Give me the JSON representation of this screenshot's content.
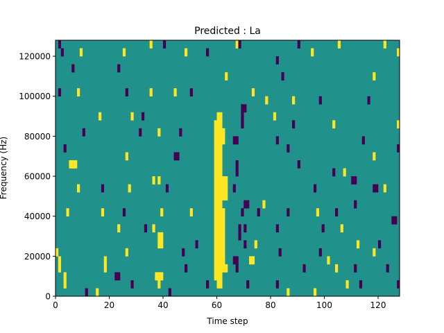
{
  "chart_data": {
    "type": "heatmap",
    "title": "Predicted : La",
    "xlabel": "Time step",
    "ylabel": "Frequency (Hz)",
    "xlim": [
      0,
      128
    ],
    "ylim": [
      0,
      128000
    ],
    "xticks": [
      0,
      20,
      40,
      60,
      80,
      100,
      120
    ],
    "yticks": [
      0,
      20000,
      40000,
      60000,
      80000,
      100000,
      120000
    ],
    "n_time_steps": 128,
    "n_freq_bins": 32,
    "bin_hz": 4000,
    "background_value": 1,
    "colors": {
      "0": "#440154",
      "1": "#21918c",
      "2": "#fde725"
    },
    "cells_note": "each cell: [time_start, time_width, freq_bin_start, bin_count, value]",
    "cells": [
      [
        59,
        3,
        2,
        20,
        2
      ],
      [
        62,
        1,
        4,
        7,
        2
      ],
      [
        60,
        2,
        22,
        1,
        2
      ],
      [
        62,
        1,
        19,
        2,
        2
      ],
      [
        62,
        2,
        3,
        1,
        2
      ],
      [
        60,
        2,
        1,
        1,
        2
      ],
      [
        61,
        3,
        12,
        3,
        2
      ],
      [
        67,
        1,
        3,
        1,
        0
      ],
      [
        66,
        1,
        13,
        1,
        0
      ],
      [
        66,
        2,
        19,
        1,
        0
      ],
      [
        69,
        1,
        21,
        2,
        0
      ],
      [
        68,
        1,
        7,
        2,
        0
      ],
      [
        70,
        1,
        6,
        1,
        0
      ],
      [
        67,
        1,
        15,
        2,
        0
      ],
      [
        71,
        1,
        1,
        1,
        0
      ],
      [
        66,
        2,
        4,
        1,
        0
      ],
      [
        69,
        1,
        10,
        1,
        0
      ],
      [
        37,
        3,
        2,
        1,
        2
      ],
      [
        38,
        1,
        1,
        1,
        2
      ],
      [
        22,
        2,
        2,
        1,
        0
      ],
      [
        18,
        1,
        3,
        2,
        2
      ],
      [
        1,
        1,
        3,
        2,
        2
      ],
      [
        38,
        2,
        6,
        2,
        2
      ],
      [
        36,
        1,
        8,
        1,
        2
      ],
      [
        39,
        1,
        10,
        1,
        2
      ],
      [
        36,
        1,
        14,
        1,
        2
      ],
      [
        38,
        1,
        14,
        1,
        2
      ],
      [
        72,
        2,
        4,
        1,
        2
      ],
      [
        86,
        1,
        0,
        1,
        2
      ],
      [
        82,
        1,
        1,
        1,
        0
      ],
      [
        127,
        1,
        1,
        1,
        0
      ],
      [
        70,
        1,
        8,
        1,
        0
      ],
      [
        125,
        2,
        9,
        1,
        0
      ],
      [
        77,
        1,
        11,
        1,
        2
      ],
      [
        70,
        2,
        11,
        1,
        0
      ],
      [
        118,
        2,
        13,
        1,
        0
      ],
      [
        5,
        2,
        16,
        1,
        2
      ],
      [
        110,
        2,
        14,
        1,
        0
      ],
      [
        69,
        2,
        23,
        1,
        0
      ],
      [
        81,
        1,
        22,
        1,
        2
      ],
      [
        78,
        1,
        24,
        1,
        2
      ],
      [
        2,
        1,
        30,
        1,
        0
      ],
      [
        1,
        1,
        31,
        1,
        0
      ],
      [
        35,
        1,
        31,
        1,
        2
      ],
      [
        40,
        1,
        31,
        1,
        0
      ],
      [
        67,
        1,
        31,
        1,
        2
      ],
      [
        68,
        1,
        31,
        1,
        0
      ],
      [
        90,
        1,
        31,
        1,
        0
      ],
      [
        105,
        1,
        31,
        1,
        2
      ],
      [
        122,
        1,
        31,
        1,
        2
      ],
      [
        127,
        1,
        30,
        1,
        2
      ],
      [
        9,
        1,
        30,
        1,
        2
      ],
      [
        25,
        1,
        30,
        1,
        2
      ],
      [
        48,
        1,
        30,
        1,
        2
      ],
      [
        56,
        1,
        30,
        1,
        0
      ],
      [
        82,
        1,
        29,
        1,
        0
      ],
      [
        95,
        1,
        30,
        1,
        2
      ],
      [
        6,
        1,
        28,
        1,
        0
      ],
      [
        23,
        1,
        28,
        1,
        0
      ],
      [
        63,
        1,
        27,
        1,
        2
      ],
      [
        84,
        1,
        27,
        1,
        0
      ],
      [
        118,
        1,
        27,
        1,
        2
      ],
      [
        1,
        1,
        25,
        1,
        0
      ],
      [
        8,
        1,
        25,
        1,
        2
      ],
      [
        26,
        1,
        25,
        1,
        0
      ],
      [
        35,
        1,
        25,
        1,
        2
      ],
      [
        44,
        1,
        25,
        1,
        2
      ],
      [
        50,
        1,
        25,
        1,
        0
      ],
      [
        73,
        1,
        25,
        1,
        2
      ],
      [
        88,
        1,
        24,
        1,
        2
      ],
      [
        98,
        1,
        24,
        1,
        0
      ],
      [
        116,
        1,
        24,
        1,
        0
      ],
      [
        16,
        1,
        22,
        1,
        2
      ],
      [
        28,
        1,
        22,
        1,
        2
      ],
      [
        32,
        1,
        22,
        1,
        0
      ],
      [
        88,
        1,
        21,
        1,
        0
      ],
      [
        103,
        1,
        21,
        1,
        2
      ],
      [
        127,
        1,
        21,
        1,
        2
      ],
      [
        10,
        1,
        20,
        1,
        0
      ],
      [
        31,
        1,
        20,
        1,
        0
      ],
      [
        38,
        1,
        20,
        1,
        2
      ],
      [
        46,
        1,
        20,
        1,
        0
      ],
      [
        82,
        1,
        19,
        1,
        0
      ],
      [
        114,
        1,
        19,
        1,
        0
      ],
      [
        3,
        1,
        18,
        1,
        0
      ],
      [
        26,
        1,
        17,
        1,
        2
      ],
      [
        44,
        1,
        17,
        1,
        0
      ],
      [
        86,
        1,
        18,
        1,
        0
      ],
      [
        118,
        1,
        17,
        1,
        2
      ],
      [
        127,
        1,
        18,
        1,
        0
      ],
      [
        6,
        2,
        16,
        1,
        2
      ],
      [
        45,
        1,
        17,
        1,
        0
      ],
      [
        90,
        1,
        16,
        1,
        0
      ],
      [
        103,
        1,
        15,
        1,
        0
      ],
      [
        107,
        1,
        15,
        1,
        2
      ],
      [
        8,
        1,
        13,
        1,
        2
      ],
      [
        17,
        1,
        13,
        1,
        0
      ],
      [
        27,
        1,
        13,
        1,
        2
      ],
      [
        41,
        1,
        13,
        1,
        0
      ],
      [
        96,
        1,
        13,
        1,
        0
      ],
      [
        122,
        1,
        13,
        1,
        2
      ],
      [
        4,
        1,
        10,
        1,
        2
      ],
      [
        17,
        1,
        10,
        1,
        2
      ],
      [
        25,
        1,
        10,
        1,
        0
      ],
      [
        50,
        1,
        10,
        1,
        2
      ],
      [
        75,
        1,
        10,
        1,
        0
      ],
      [
        86,
        1,
        10,
        1,
        0
      ],
      [
        97,
        1,
        10,
        1,
        2
      ],
      [
        104,
        1,
        10,
        1,
        0
      ],
      [
        111,
        1,
        11,
        1,
        0
      ],
      [
        23,
        1,
        8,
        1,
        2
      ],
      [
        33,
        1,
        8,
        1,
        0
      ],
      [
        82,
        1,
        8,
        1,
        0
      ],
      [
        99,
        1,
        8,
        1,
        0
      ],
      [
        106,
        1,
        8,
        1,
        2
      ],
      [
        52,
        1,
        6,
        1,
        0
      ],
      [
        74,
        1,
        6,
        1,
        2
      ],
      [
        112,
        1,
        6,
        1,
        2
      ],
      [
        120,
        1,
        6,
        1,
        0
      ],
      [
        0,
        1,
        5,
        1,
        2
      ],
      [
        26,
        1,
        5,
        1,
        2
      ],
      [
        47,
        1,
        5,
        1,
        0
      ],
      [
        83,
        1,
        5,
        1,
        0
      ],
      [
        98,
        1,
        5,
        1,
        0
      ],
      [
        101,
        1,
        4,
        1,
        2
      ],
      [
        118,
        1,
        5,
        1,
        2
      ],
      [
        48,
        1,
        3,
        1,
        0
      ],
      [
        92,
        1,
        3,
        1,
        0
      ],
      [
        104,
        1,
        3,
        1,
        2
      ],
      [
        111,
        1,
        3,
        1,
        0
      ],
      [
        123,
        1,
        3,
        1,
        0
      ],
      [
        3,
        1,
        1,
        2,
        2
      ],
      [
        28,
        1,
        1,
        1,
        0
      ],
      [
        56,
        1,
        1,
        1,
        0
      ],
      [
        108,
        1,
        1,
        1,
        2
      ],
      [
        113,
        1,
        1,
        1,
        0
      ],
      [
        11,
        1,
        0,
        1,
        0
      ],
      [
        15,
        1,
        0,
        1,
        2
      ],
      [
        42,
        1,
        0,
        1,
        0
      ],
      [
        96,
        1,
        0,
        1,
        2
      ]
    ]
  }
}
